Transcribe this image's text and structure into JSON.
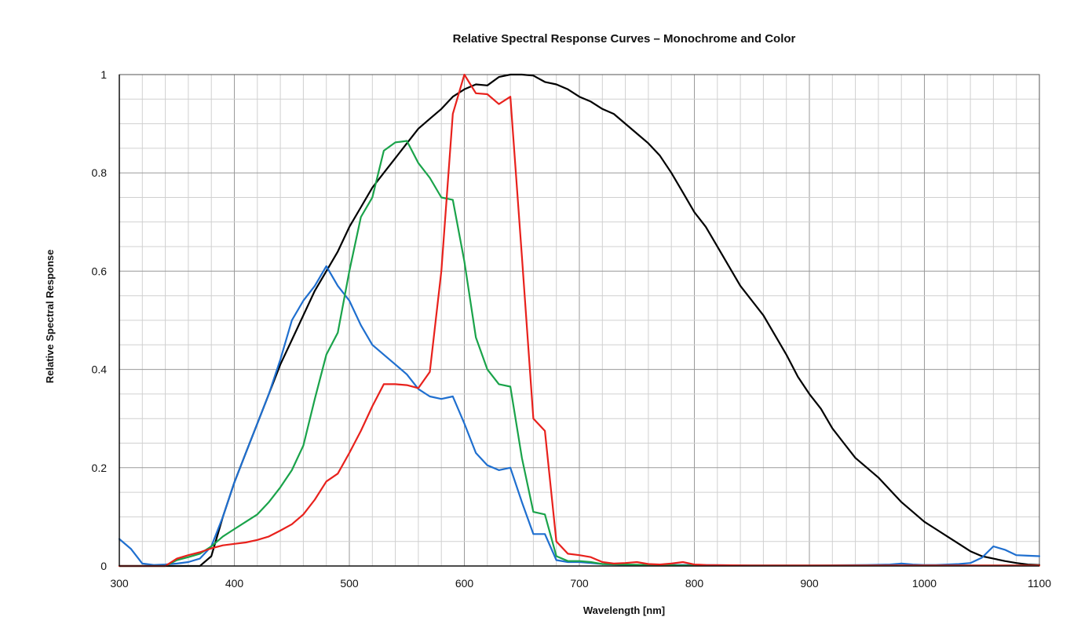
{
  "chart_data": {
    "type": "line",
    "title": "Relative Spectral Response Curves – Monochrome and Color",
    "xlabel": "Wavelength [nm]",
    "ylabel": "Relative Spectral Response",
    "xlim": [
      300,
      1100
    ],
    "ylim": [
      0,
      1
    ],
    "grid": true,
    "legend": "none",
    "x_ticks": [
      300,
      400,
      500,
      600,
      700,
      800,
      900,
      1000,
      1100
    ],
    "x_tick_labels": [
      "300",
      "400",
      "500",
      "600",
      "700",
      "800",
      "900",
      "1000",
      "1100"
    ],
    "y_ticks": [
      0,
      0.2,
      0.4,
      0.6,
      0.8,
      1
    ],
    "y_tick_labels": [
      "0",
      "0.2",
      "0.4",
      "0.6",
      "0.8",
      "1"
    ],
    "series": [
      {
        "color": "#000000",
        "points": [
          [
            300,
            0
          ],
          [
            370,
            0
          ],
          [
            380,
            0.02
          ],
          [
            390,
            0.1
          ],
          [
            400,
            0.17
          ],
          [
            410,
            0.23
          ],
          [
            420,
            0.29
          ],
          [
            430,
            0.35
          ],
          [
            440,
            0.41
          ],
          [
            450,
            0.46
          ],
          [
            460,
            0.51
          ],
          [
            470,
            0.56
          ],
          [
            480,
            0.6
          ],
          [
            490,
            0.64
          ],
          [
            500,
            0.69
          ],
          [
            510,
            0.73
          ],
          [
            520,
            0.77
          ],
          [
            530,
            0.8
          ],
          [
            540,
            0.83
          ],
          [
            550,
            0.86
          ],
          [
            560,
            0.89
          ],
          [
            570,
            0.91
          ],
          [
            580,
            0.93
          ],
          [
            590,
            0.955
          ],
          [
            600,
            0.97
          ],
          [
            610,
            0.98
          ],
          [
            620,
            0.978
          ],
          [
            630,
            0.995
          ],
          [
            640,
            1.0
          ],
          [
            650,
            1.0
          ],
          [
            660,
            0.998
          ],
          [
            670,
            0.985
          ],
          [
            680,
            0.98
          ],
          [
            690,
            0.97
          ],
          [
            700,
            0.955
          ],
          [
            710,
            0.945
          ],
          [
            720,
            0.93
          ],
          [
            730,
            0.92
          ],
          [
            740,
            0.9
          ],
          [
            750,
            0.88
          ],
          [
            760,
            0.86
          ],
          [
            770,
            0.835
          ],
          [
            780,
            0.8
          ],
          [
            790,
            0.76
          ],
          [
            800,
            0.72
          ],
          [
            810,
            0.69
          ],
          [
            820,
            0.65
          ],
          [
            830,
            0.61
          ],
          [
            840,
            0.57
          ],
          [
            850,
            0.54
          ],
          [
            860,
            0.51
          ],
          [
            870,
            0.47
          ],
          [
            880,
            0.43
          ],
          [
            890,
            0.385
          ],
          [
            900,
            0.35
          ],
          [
            910,
            0.32
          ],
          [
            920,
            0.28
          ],
          [
            930,
            0.25
          ],
          [
            940,
            0.22
          ],
          [
            950,
            0.2
          ],
          [
            960,
            0.18
          ],
          [
            970,
            0.155
          ],
          [
            980,
            0.13
          ],
          [
            990,
            0.11
          ],
          [
            1000,
            0.09
          ],
          [
            1010,
            0.075
          ],
          [
            1020,
            0.06
          ],
          [
            1030,
            0.045
          ],
          [
            1040,
            0.03
          ],
          [
            1050,
            0.02
          ],
          [
            1060,
            0.015
          ],
          [
            1070,
            0.01
          ],
          [
            1080,
            0.006
          ],
          [
            1090,
            0.003
          ],
          [
            1100,
            0.002
          ]
        ]
      },
      {
        "color": "#1f6fcf",
        "points": [
          [
            300,
            0.055
          ],
          [
            310,
            0.035
          ],
          [
            320,
            0.005
          ],
          [
            330,
            0.002
          ],
          [
            340,
            0.003
          ],
          [
            350,
            0.005
          ],
          [
            360,
            0.008
          ],
          [
            370,
            0.015
          ],
          [
            380,
            0.04
          ],
          [
            390,
            0.1
          ],
          [
            400,
            0.17
          ],
          [
            410,
            0.23
          ],
          [
            420,
            0.29
          ],
          [
            430,
            0.35
          ],
          [
            440,
            0.42
          ],
          [
            450,
            0.5
          ],
          [
            460,
            0.54
          ],
          [
            470,
            0.57
          ],
          [
            480,
            0.61
          ],
          [
            490,
            0.57
          ],
          [
            500,
            0.54
          ],
          [
            510,
            0.49
          ],
          [
            520,
            0.45
          ],
          [
            530,
            0.43
          ],
          [
            540,
            0.41
          ],
          [
            550,
            0.39
          ],
          [
            560,
            0.36
          ],
          [
            570,
            0.345
          ],
          [
            580,
            0.34
          ],
          [
            590,
            0.345
          ],
          [
            600,
            0.29
          ],
          [
            610,
            0.23
          ],
          [
            620,
            0.205
          ],
          [
            630,
            0.195
          ],
          [
            640,
            0.2
          ],
          [
            650,
            0.13
          ],
          [
            660,
            0.065
          ],
          [
            670,
            0.065
          ],
          [
            680,
            0.012
          ],
          [
            690,
            0.008
          ],
          [
            700,
            0.008
          ],
          [
            710,
            0.006
          ],
          [
            720,
            0.004
          ],
          [
            740,
            0.002
          ],
          [
            760,
            0.002
          ],
          [
            800,
            0.002
          ],
          [
            850,
            0.001
          ],
          [
            900,
            0.001
          ],
          [
            950,
            0.002
          ],
          [
            970,
            0.003
          ],
          [
            980,
            0.005
          ],
          [
            990,
            0.003
          ],
          [
            1000,
            0.002
          ],
          [
            1010,
            0.002
          ],
          [
            1020,
            0.003
          ],
          [
            1030,
            0.004
          ],
          [
            1040,
            0.006
          ],
          [
            1050,
            0.017
          ],
          [
            1060,
            0.04
          ],
          [
            1070,
            0.033
          ],
          [
            1080,
            0.022
          ],
          [
            1090,
            0.021
          ],
          [
            1100,
            0.02
          ]
        ]
      },
      {
        "color": "#1aa34a",
        "points": [
          [
            300,
            0
          ],
          [
            340,
            0
          ],
          [
            350,
            0.012
          ],
          [
            360,
            0.018
          ],
          [
            370,
            0.025
          ],
          [
            380,
            0.04
          ],
          [
            390,
            0.06
          ],
          [
            400,
            0.075
          ],
          [
            410,
            0.09
          ],
          [
            420,
            0.105
          ],
          [
            430,
            0.13
          ],
          [
            440,
            0.16
          ],
          [
            450,
            0.195
          ],
          [
            460,
            0.245
          ],
          [
            470,
            0.34
          ],
          [
            480,
            0.43
          ],
          [
            490,
            0.475
          ],
          [
            500,
            0.6
          ],
          [
            510,
            0.71
          ],
          [
            520,
            0.75
          ],
          [
            530,
            0.845
          ],
          [
            540,
            0.862
          ],
          [
            550,
            0.865
          ],
          [
            560,
            0.82
          ],
          [
            570,
            0.79
          ],
          [
            580,
            0.75
          ],
          [
            590,
            0.745
          ],
          [
            600,
            0.62
          ],
          [
            610,
            0.465
          ],
          [
            620,
            0.4
          ],
          [
            630,
            0.37
          ],
          [
            640,
            0.365
          ],
          [
            650,
            0.22
          ],
          [
            660,
            0.11
          ],
          [
            670,
            0.105
          ],
          [
            680,
            0.02
          ],
          [
            690,
            0.01
          ],
          [
            700,
            0.01
          ],
          [
            710,
            0.008
          ],
          [
            720,
            0.004
          ],
          [
            740,
            0.003
          ],
          [
            760,
            0.002
          ],
          [
            800,
            0.001
          ],
          [
            900,
            0.001
          ],
          [
            1000,
            0.001
          ],
          [
            1100,
            0.001
          ]
        ]
      },
      {
        "color": "#e8211c",
        "points": [
          [
            300,
            0
          ],
          [
            340,
            0
          ],
          [
            350,
            0.015
          ],
          [
            360,
            0.022
          ],
          [
            370,
            0.028
          ],
          [
            380,
            0.036
          ],
          [
            390,
            0.042
          ],
          [
            400,
            0.045
          ],
          [
            410,
            0.048
          ],
          [
            420,
            0.053
          ],
          [
            430,
            0.06
          ],
          [
            440,
            0.072
          ],
          [
            450,
            0.085
          ],
          [
            460,
            0.105
          ],
          [
            470,
            0.135
          ],
          [
            480,
            0.172
          ],
          [
            490,
            0.188
          ],
          [
            500,
            0.23
          ],
          [
            510,
            0.275
          ],
          [
            520,
            0.325
          ],
          [
            530,
            0.37
          ],
          [
            540,
            0.37
          ],
          [
            550,
            0.368
          ],
          [
            560,
            0.362
          ],
          [
            570,
            0.395
          ],
          [
            580,
            0.6
          ],
          [
            590,
            0.92
          ],
          [
            600,
            1.0
          ],
          [
            610,
            0.962
          ],
          [
            620,
            0.96
          ],
          [
            630,
            0.94
          ],
          [
            640,
            0.955
          ],
          [
            650,
            0.63
          ],
          [
            660,
            0.3
          ],
          [
            670,
            0.275
          ],
          [
            680,
            0.05
          ],
          [
            690,
            0.025
          ],
          [
            700,
            0.022
          ],
          [
            710,
            0.018
          ],
          [
            720,
            0.008
          ],
          [
            730,
            0.005
          ],
          [
            740,
            0.006
          ],
          [
            750,
            0.008
          ],
          [
            760,
            0.004
          ],
          [
            770,
            0.003
          ],
          [
            780,
            0.005
          ],
          [
            790,
            0.008
          ],
          [
            800,
            0.003
          ],
          [
            810,
            0.002
          ],
          [
            850,
            0.001
          ],
          [
            900,
            0.001
          ],
          [
            1000,
            0.001
          ],
          [
            1100,
            0.001
          ]
        ]
      }
    ]
  }
}
